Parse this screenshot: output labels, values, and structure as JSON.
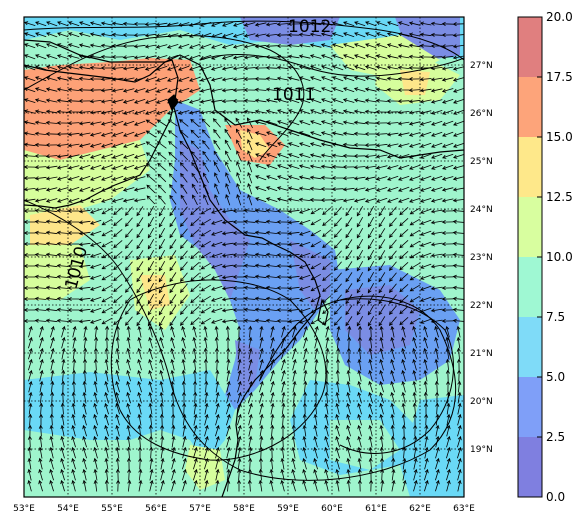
{
  "map": {
    "lon_labels": [
      "53°E",
      "54°E",
      "55°E",
      "56°E",
      "57°E",
      "58°E",
      "59°E",
      "60°E",
      "61°E",
      "62°E",
      "63°E"
    ],
    "lat_labels": [
      "19°N",
      "20°N",
      "21°N",
      "22°N",
      "23°N",
      "24°N",
      "25°N",
      "26°N",
      "27°N"
    ],
    "lon_range": [
      53,
      63
    ],
    "lat_range": [
      18,
      28
    ],
    "isobar_labels": [
      "1012",
      "1011",
      "1010"
    ],
    "colors": {
      "ocean_a": "#9ff5cd",
      "ocean_b": "#6ad9f6",
      "ocean_c": "#a6f0d8",
      "land_a": "#6aa0f3",
      "land_b": "#7b8de4",
      "warm_a": "#d6fe9c",
      "warm_b": "#fee68a",
      "hot": "#fda177"
    }
  },
  "colorbar": {
    "tick_labels": [
      "20.0",
      "17.5",
      "15.0",
      "12.5",
      "10.0",
      "7.5",
      "5.0",
      "2.5",
      "0.0"
    ],
    "bins": [
      {
        "from": 0.0,
        "to": 2.5,
        "color": "#7f7fe0"
      },
      {
        "from": 2.5,
        "to": 5.0,
        "color": "#7f9ff8"
      },
      {
        "from": 5.0,
        "to": 7.5,
        "color": "#7fdbf8"
      },
      {
        "from": 7.5,
        "to": 10.0,
        "color": "#9ff8d3"
      },
      {
        "from": 10.0,
        "to": 12.5,
        "color": "#d8fe9f"
      },
      {
        "from": 12.5,
        "to": 15.0,
        "color": "#fee88a"
      },
      {
        "from": 15.0,
        "to": 17.5,
        "color": "#fda47a"
      },
      {
        "from": 17.5,
        "to": 20.0,
        "color": "#e07f7f"
      }
    ]
  }
}
